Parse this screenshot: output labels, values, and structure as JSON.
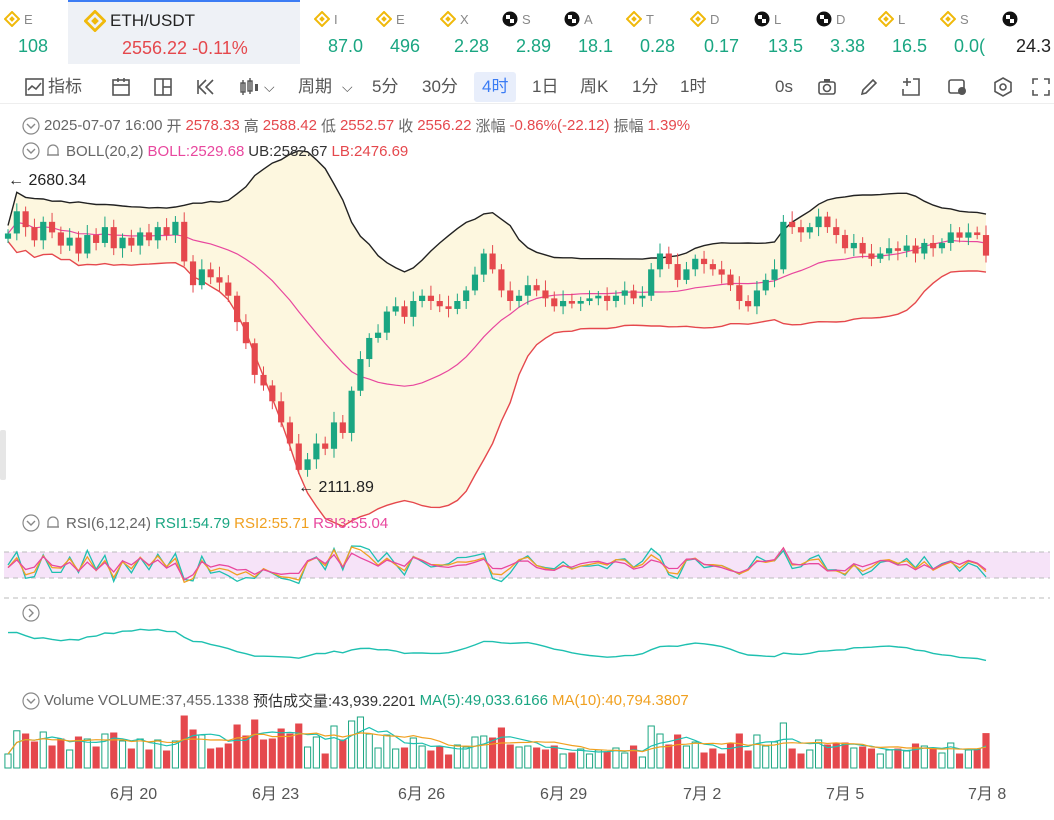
{
  "ticker": {
    "items": [
      {
        "sym": "E",
        "price": "108",
        "icon": "bnb-coin-icon",
        "dir": "up"
      },
      {
        "sym": "ETH/USDT",
        "price": "2556.22",
        "change": "-0.11%",
        "icon": "bnb-coin-icon",
        "dir": "down",
        "active": true
      },
      {
        "sym": "I",
        "price": "87.0",
        "icon": "bnb-coin-icon",
        "dir": "up"
      },
      {
        "sym": "E",
        "price": "496",
        "icon": "bnb-coin-icon",
        "dir": "up"
      },
      {
        "sym": "X",
        "price": "2.28",
        "icon": "bnb-coin-icon",
        "dir": "up"
      },
      {
        "sym": "S",
        "price": "2.89",
        "icon": "checker-coin-icon",
        "dir": "up"
      },
      {
        "sym": "A",
        "price": "18.1",
        "icon": "checker-coin-icon",
        "dir": "up"
      },
      {
        "sym": "T",
        "price": "0.28",
        "icon": "bnb-coin-icon",
        "dir": "up"
      },
      {
        "sym": "D",
        "price": "0.17",
        "icon": "bnb-coin-icon",
        "dir": "up"
      },
      {
        "sym": "L",
        "price": "13.5",
        "icon": "checker-coin-icon",
        "dir": "up"
      },
      {
        "sym": "D",
        "price": "3.38",
        "icon": "checker-coin-icon",
        "dir": "up"
      },
      {
        "sym": "L",
        "price": "16.5",
        "icon": "bnb-coin-icon",
        "dir": "up"
      },
      {
        "sym": "S",
        "price": "0.0(",
        "icon": "bnb-coin-icon",
        "dir": "up"
      },
      {
        "sym": "",
        "price": "24.3",
        "icon": "checker-coin-icon",
        "dir": "neutral"
      }
    ]
  },
  "toolbar": {
    "indicator_label": "指标",
    "period_label": "周期",
    "intervals": [
      "5分",
      "30分",
      "4时",
      "1日",
      "周K",
      "1分",
      "1时"
    ],
    "selected_interval": "4时",
    "countdown": "0s"
  },
  "ohlc": {
    "date": "2025-07-07 16:00",
    "open_label": "开",
    "open": "2578.33",
    "high_label": "高",
    "high": "2588.42",
    "low_label": "低",
    "low": "2552.57",
    "close_label": "收",
    "close": "2556.22",
    "change_label": "涨幅",
    "change": "-0.86%(-22.12)",
    "amp_label": "振幅",
    "amp": "1.39%"
  },
  "boll": {
    "name": "BOLL(20,2)",
    "mid": "BOLL:2529.68",
    "ub": "UB:2582.67",
    "lb": "LB:2476.69"
  },
  "price_marks": {
    "high": "← 2680.34",
    "low": "← 2111.89"
  },
  "rsi": {
    "name": "RSI(6,12,24)",
    "r1": "RSI1:54.79",
    "r2": "RSI2:55.71",
    "r3": "RSI3:55.04"
  },
  "volume": {
    "name": "Volume",
    "vol": "VOLUME:37,455.1338",
    "est": "预估成交量:43,939.2201",
    "ma5": "MA(5):49,033.6166",
    "ma10": "MA(10):40,794.3807"
  },
  "x_axis": [
    "6月 20",
    "6月 23",
    "6月 26",
    "6月 29",
    "7月 2",
    "7月 5",
    "7月 8"
  ],
  "colors": {
    "up": "#1aa682",
    "down": "#e5484d",
    "accent": "#3b7cf4",
    "boll_mid": "#e8479e",
    "rsi1": "#1ec0b0",
    "rsi2": "#f0a020",
    "rsi3": "#e8479e"
  },
  "chart_data": {
    "type": "candlestick",
    "price_range": [
      2111.89,
      2680.34
    ],
    "closes": [
      2598,
      2640,
      2610,
      2585,
      2620,
      2600,
      2575,
      2590,
      2560,
      2595,
      2580,
      2610,
      2570,
      2590,
      2575,
      2600,
      2585,
      2610,
      2595,
      2620,
      2545,
      2500,
      2530,
      2515,
      2505,
      2480,
      2430,
      2390,
      2330,
      2310,
      2280,
      2240,
      2200,
      2150,
      2170,
      2200,
      2190,
      2240,
      2220,
      2300,
      2360,
      2400,
      2410,
      2450,
      2460,
      2440,
      2470,
      2480,
      2470,
      2460,
      2455,
      2470,
      2490,
      2520,
      2560,
      2530,
      2490,
      2470,
      2480,
      2500,
      2490,
      2475,
      2460,
      2470,
      2465,
      2470,
      2475,
      2480,
      2470,
      2480,
      2490,
      2475,
      2480,
      2530,
      2560,
      2540,
      2510,
      2530,
      2550,
      2540,
      2530,
      2520,
      2500,
      2470,
      2460,
      2490,
      2510,
      2530,
      2620,
      2610,
      2600,
      2610,
      2630,
      2610,
      2595,
      2570,
      2580,
      2560,
      2550,
      2560,
      2570,
      2565,
      2575,
      2560,
      2580,
      2570,
      2580,
      2600,
      2590,
      2600,
      2595,
      2556
    ]
  }
}
